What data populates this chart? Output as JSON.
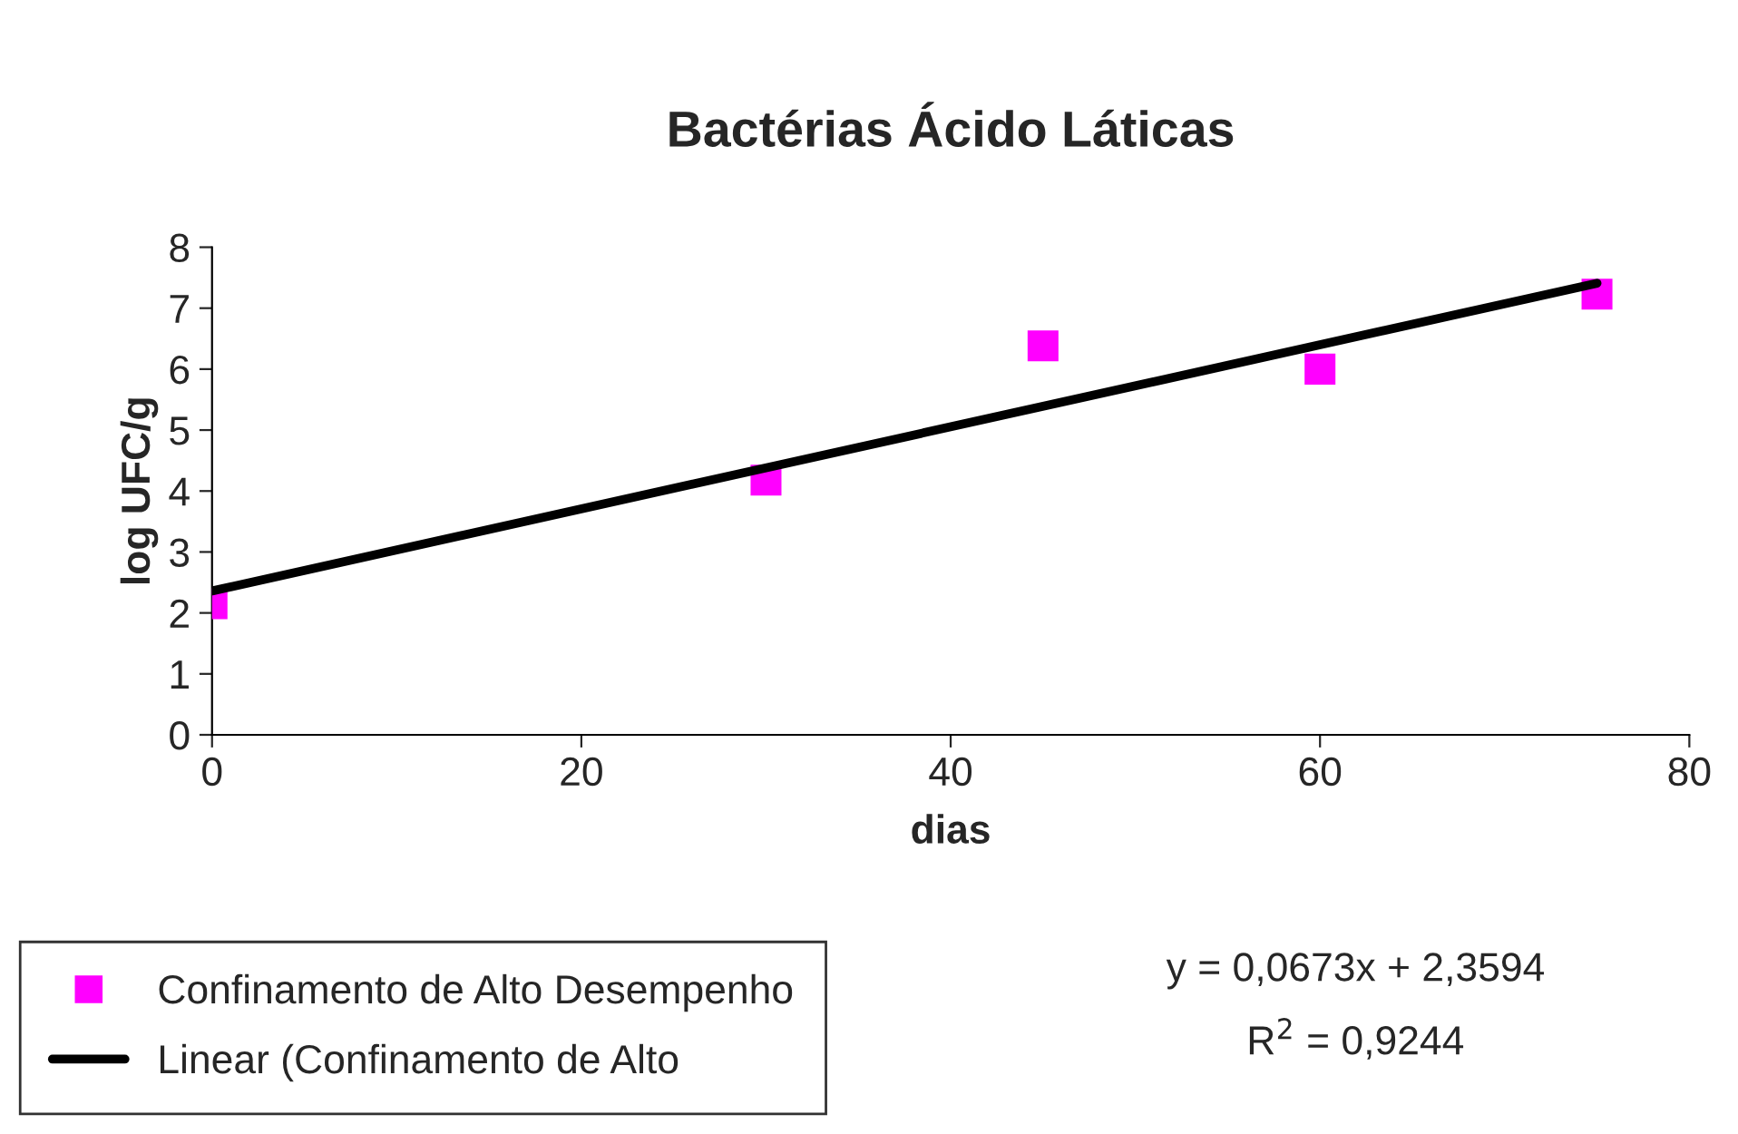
{
  "chart_data": {
    "type": "scatter",
    "title": "Bactérias Ácido Láticas",
    "xlabel": "dias",
    "ylabel": "log UFC/g",
    "x": [
      0,
      30,
      45,
      60,
      75
    ],
    "series": [
      {
        "name": "Confinamento de Alto Desempenho",
        "color": "#ff00ff",
        "marker": "square",
        "values": [
          2.15,
          4.18,
          6.38,
          6.0,
          7.23
        ]
      },
      {
        "name": "Linear (Confinamento de Alto",
        "color": "#000000",
        "type": "line",
        "marker": "none",
        "line_style": "solid",
        "x": [
          0,
          75
        ],
        "values": [
          2.36,
          7.41
        ]
      }
    ],
    "xlim": [
      0,
      80
    ],
    "xticks": [
      0,
      20,
      40,
      60,
      80
    ],
    "ylim": [
      0,
      8
    ],
    "yticks": [
      0,
      1,
      2,
      3,
      4,
      5,
      6,
      7,
      8
    ],
    "grid": false,
    "legend": "bottom left",
    "annotations": [
      "y = 0,0673x + 2,3594",
      "R$^{2}$ = 0,9244"
    ]
  }
}
